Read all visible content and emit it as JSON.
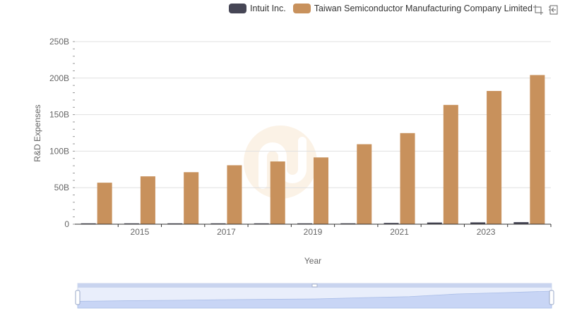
{
  "legend": {
    "items": [
      {
        "label": "Intuit Inc.",
        "color": "#464655"
      },
      {
        "label": "Taiwan Semiconductor Manufacturing Company Limited",
        "color": "#c8915c"
      }
    ]
  },
  "toolbox": {
    "icons": [
      "zoom-icon",
      "zoom-reset-icon"
    ]
  },
  "chart_data": {
    "type": "bar",
    "xlabel": "Year",
    "ylabel": "R&D Expenses",
    "ylim": [
      0,
      250000000000
    ],
    "y_ticks": [
      "0",
      "50B",
      "100B",
      "150B",
      "200B",
      "250B"
    ],
    "x_tick_labels": [
      "2015",
      "2017",
      "2019",
      "2021",
      "2023"
    ],
    "categories": [
      "2014",
      "2015",
      "2016",
      "2017",
      "2018",
      "2019",
      "2020",
      "2021",
      "2022",
      "2023",
      "2024"
    ],
    "series": [
      {
        "name": "Intuit Inc.",
        "color": "#464655",
        "values": [
          620000000,
          700000000,
          760000000,
          850000000,
          1000000000,
          1100000000,
          1200000000,
          1700000000,
          2300000000,
          2500000000,
          2800000000
        ]
      },
      {
        "name": "Taiwan Semiconductor Manufacturing Company Limited",
        "color": "#c8915c",
        "values": [
          56800000000,
          65500000000,
          71200000000,
          80700000000,
          85900000000,
          91400000000,
          109500000000,
          124700000000,
          163300000000,
          182400000000,
          204200000000
        ]
      }
    ],
    "grid": true,
    "legend_position": "top-right",
    "zoom_slider": true
  }
}
